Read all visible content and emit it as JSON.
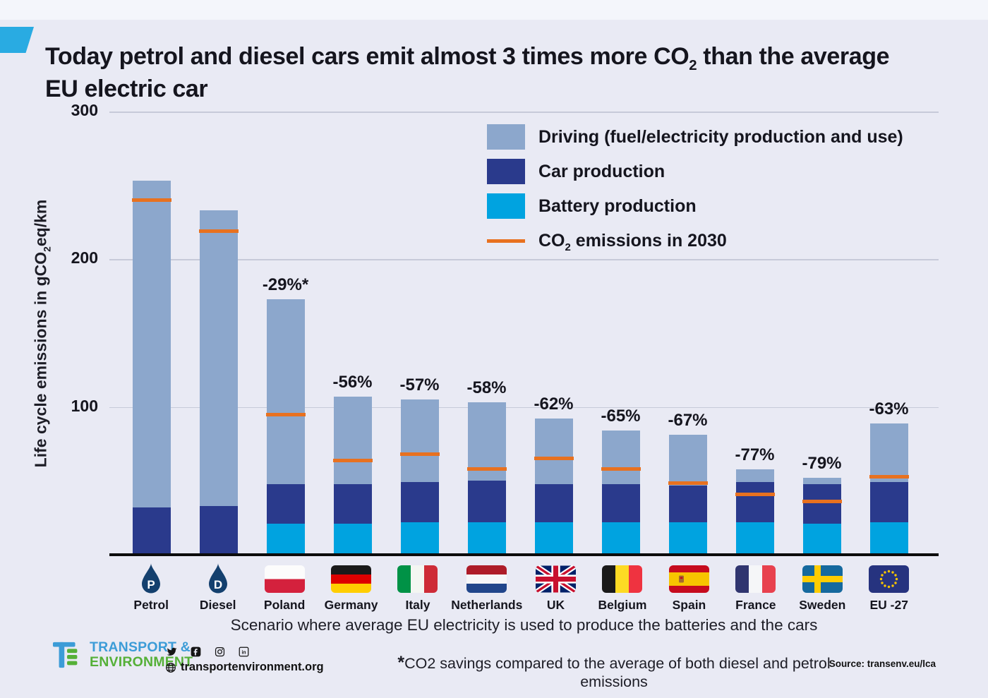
{
  "title": {
    "line1_pre": "Today petrol and diesel cars emit almost 3 times more CO",
    "line1_sub": "2",
    "line1_post": " than the average",
    "line2": "EU electric car"
  },
  "legend": {
    "driving": "Driving (fuel/electricity production and use)",
    "car": "Car production",
    "battery": "Battery production",
    "co2_pre": "CO",
    "co2_sub": "2",
    "co2_post": " emissions in 2030"
  },
  "yaxis": {
    "label_pre": "Life  cycle emissions in gCO",
    "label_sub": "2",
    "label_post": "eq/km"
  },
  "xaxis": {
    "caption": "Scenario where  average EU electricity is used to produce the batteries and the cars",
    "items": [
      {
        "label": "Petrol",
        "icon": "petrol-droplet-icon"
      },
      {
        "label": "Diesel",
        "icon": "diesel-droplet-icon"
      },
      {
        "label": "Poland",
        "icon": "poland-flag-icon"
      },
      {
        "label": "Germany",
        "icon": "germany-flag-icon"
      },
      {
        "label": "Italy",
        "icon": "italy-flag-icon"
      },
      {
        "label": "Netherlands",
        "icon": "netherlands-flag-icon"
      },
      {
        "label": "UK",
        "icon": "uk-flag-icon"
      },
      {
        "label": "Belgium",
        "icon": "belgium-flag-icon"
      },
      {
        "label": "Spain",
        "icon": "spain-flag-icon"
      },
      {
        "label": "France",
        "icon": "france-flag-icon"
      },
      {
        "label": "Sweden",
        "icon": "sweden-flag-icon"
      },
      {
        "label": "EU -27",
        "icon": "eu-flag-icon"
      }
    ]
  },
  "chart_data": {
    "type": "bar",
    "stacked": true,
    "stack_order": "bottom-to-top",
    "title": "Today petrol and diesel cars emit almost 3 times more CO2 than the average EU electric car",
    "ylabel": "Life cycle emissions in gCO2eq/km",
    "xlabel": "Scenario where average EU electricity is used to produce the batteries and the cars",
    "ylim": [
      0,
      300
    ],
    "yticks": [
      300,
      200,
      100
    ],
    "grid": true,
    "legend_position": "top-right",
    "categories": [
      "Petrol",
      "Diesel",
      "Poland",
      "Germany",
      "Italy",
      "Netherlands",
      "UK",
      "Belgium",
      "Spain",
      "France",
      "Sweden",
      "EU-27"
    ],
    "series": [
      {
        "name": "Battery production",
        "color": "#00A3E0",
        "values": [
          0,
          0,
          21,
          21,
          22,
          22,
          22,
          22,
          22,
          22,
          21,
          22
        ]
      },
      {
        "name": "Car production",
        "color": "#2A3A8C",
        "values": [
          32,
          33,
          27,
          27,
          27,
          28,
          26,
          26,
          25,
          27,
          27,
          27
        ]
      },
      {
        "name": "Driving (fuel/electricity production and use)",
        "color": "#8CA7CC",
        "values": [
          221,
          200,
          125,
          59,
          56,
          53,
          44,
          36,
          34,
          9,
          4,
          40
        ]
      }
    ],
    "totals": [
      253,
      233,
      173,
      107,
      105,
      103,
      92,
      84,
      81,
      58,
      52,
      89
    ],
    "co2_2030_line": {
      "name": "CO2 emissions in 2030",
      "color": "#E8711F",
      "values": [
        240,
        219,
        95,
        64,
        68,
        58,
        65,
        58,
        48.5,
        41,
        36,
        53
      ]
    },
    "pct_labels": [
      "",
      "",
      "-29%*",
      "-56%",
      "-57%",
      "-58%",
      "-62%",
      "-65%",
      "-67%",
      "-77%",
      "-79%",
      "-63%"
    ]
  },
  "footer": {
    "logo_line1": "TRANSPORT &",
    "logo_line2": "ENVIRONMENT",
    "website": "transportenvironment.org",
    "footnote_star": "*",
    "footnote_text": "CO2 savings compared to the average of both diesel and petrol emissions",
    "source": "Source: transenv.eu/lca"
  },
  "colors": {
    "background": "#E9EAF4",
    "driving": "#8CA7CC",
    "car_production": "#2A3A8C",
    "battery_production": "#00A3E0",
    "co2_2030_line": "#E8711F",
    "highlight": "#29ABE2",
    "logo_blue": "#3C9CD7",
    "logo_green": "#55B038",
    "text": "#15151E"
  }
}
